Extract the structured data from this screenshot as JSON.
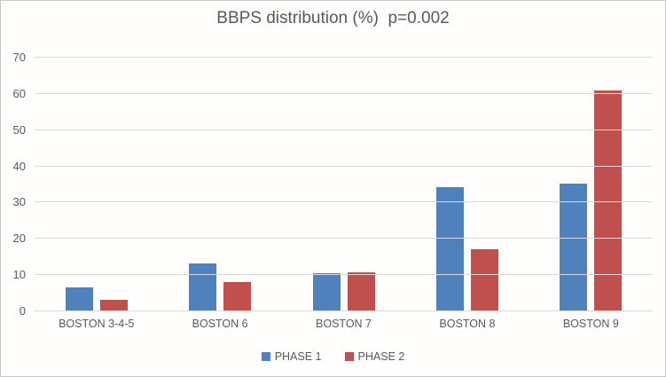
{
  "frame": {
    "background": "#fffefd",
    "border_color": "#c8c8c8"
  },
  "chart_data": {
    "type": "bar",
    "title": "BBPS distribution (%)  p=0.002",
    "xlabel": "",
    "ylabel": "",
    "categories": [
      "BOSTON 3-4-5",
      "BOSTON 6",
      "BOSTON 7",
      "BOSTON 8",
      "BOSTON 9"
    ],
    "series": [
      {
        "name": "PHASE 1",
        "color": "#4F81BD",
        "values": [
          6.7,
          13.3,
          10.6,
          34.2,
          35.3
        ]
      },
      {
        "name": "PHASE 2",
        "color": "#C0504D",
        "values": [
          3.3,
          8.1,
          10.8,
          17.1,
          61.0
        ]
      }
    ],
    "ylim": [
      0,
      70
    ],
    "yticks": [
      0,
      10,
      20,
      30,
      40,
      50,
      60,
      70
    ],
    "grid": "horizontal",
    "gridline_color": "#d9d9d9",
    "text_color": "#595959",
    "title_color": "#595959",
    "legend_position": "bottom"
  }
}
